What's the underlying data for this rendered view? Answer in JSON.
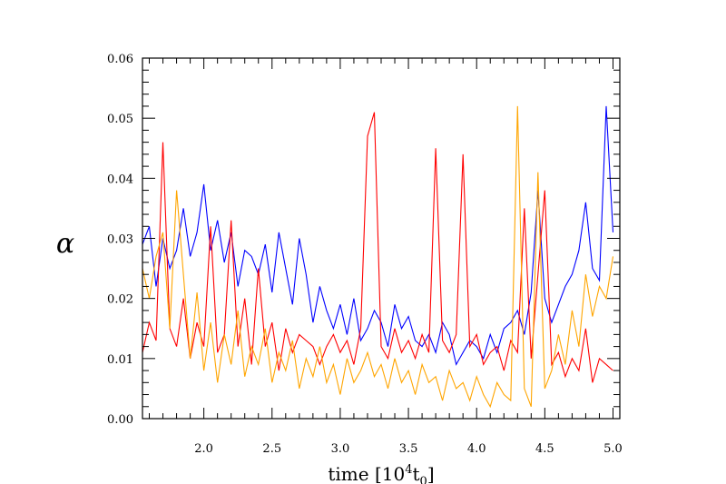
{
  "chart_data": {
    "type": "line",
    "title": "",
    "xlabel": "time [10",
    "xlabel_sup": "4",
    "xlabel_tail": "t",
    "xlabel_sub": "0",
    "xlabel_close": "]",
    "ylabel": "α",
    "xlim": [
      1.55,
      5.05
    ],
    "ylim": [
      0.0,
      0.06
    ],
    "xticks": [
      "2.0",
      "2.5",
      "3.0",
      "3.5",
      "4.0",
      "4.5",
      "5.0"
    ],
    "yticks": [
      "0.00",
      "0.01",
      "0.02",
      "0.03",
      "0.04",
      "0.05",
      "0.06"
    ],
    "grid": false,
    "series": [
      {
        "color": "#0000ff",
        "x": [
          1.55,
          1.6,
          1.65,
          1.7,
          1.75,
          1.8,
          1.85,
          1.9,
          1.95,
          2.0,
          2.05,
          2.1,
          2.15,
          2.2,
          2.25,
          2.3,
          2.35,
          2.4,
          2.45,
          2.5,
          2.55,
          2.6,
          2.65,
          2.7,
          2.75,
          2.8,
          2.85,
          2.9,
          2.95,
          3.0,
          3.05,
          3.1,
          3.15,
          3.2,
          3.25,
          3.3,
          3.35,
          3.4,
          3.45,
          3.5,
          3.55,
          3.6,
          3.65,
          3.7,
          3.75,
          3.8,
          3.85,
          3.9,
          3.95,
          4.0,
          4.05,
          4.1,
          4.15,
          4.2,
          4.25,
          4.3,
          4.35,
          4.4,
          4.45,
          4.5,
          4.55,
          4.6,
          4.65,
          4.7,
          4.75,
          4.8,
          4.85,
          4.9,
          4.95,
          5.0
        ],
        "values": [
          0.029,
          0.032,
          0.022,
          0.03,
          0.025,
          0.028,
          0.035,
          0.027,
          0.031,
          0.039,
          0.028,
          0.033,
          0.026,
          0.031,
          0.022,
          0.028,
          0.027,
          0.024,
          0.029,
          0.021,
          0.031,
          0.025,
          0.019,
          0.03,
          0.024,
          0.016,
          0.022,
          0.018,
          0.015,
          0.019,
          0.014,
          0.02,
          0.013,
          0.015,
          0.018,
          0.016,
          0.012,
          0.019,
          0.015,
          0.017,
          0.013,
          0.012,
          0.014,
          0.011,
          0.016,
          0.014,
          0.009,
          0.011,
          0.013,
          0.012,
          0.01,
          0.014,
          0.011,
          0.015,
          0.016,
          0.018,
          0.014,
          0.021,
          0.038,
          0.02,
          0.016,
          0.019,
          0.022,
          0.024,
          0.028,
          0.036,
          0.025,
          0.023,
          0.052,
          0.031
        ]
      },
      {
        "color": "#ff0000",
        "x": [
          1.55,
          1.6,
          1.65,
          1.7,
          1.75,
          1.8,
          1.85,
          1.9,
          1.95,
          2.0,
          2.05,
          2.1,
          2.15,
          2.2,
          2.25,
          2.3,
          2.35,
          2.4,
          2.45,
          2.5,
          2.55,
          2.6,
          2.65,
          2.7,
          2.75,
          2.8,
          2.85,
          2.9,
          2.95,
          3.0,
          3.05,
          3.1,
          3.15,
          3.2,
          3.25,
          3.3,
          3.35,
          3.4,
          3.45,
          3.5,
          3.55,
          3.6,
          3.65,
          3.7,
          3.75,
          3.8,
          3.85,
          3.9,
          3.95,
          4.0,
          4.05,
          4.1,
          4.15,
          4.2,
          4.25,
          4.3,
          4.35,
          4.4,
          4.45,
          4.5,
          4.55,
          4.6,
          4.65,
          4.7,
          4.75,
          4.8,
          4.85,
          4.9,
          4.95,
          5.0
        ],
        "values": [
          0.011,
          0.016,
          0.013,
          0.046,
          0.015,
          0.012,
          0.02,
          0.01,
          0.016,
          0.012,
          0.032,
          0.011,
          0.014,
          0.033,
          0.012,
          0.02,
          0.009,
          0.025,
          0.012,
          0.016,
          0.008,
          0.015,
          0.011,
          0.014,
          0.013,
          0.012,
          0.009,
          0.012,
          0.014,
          0.011,
          0.013,
          0.009,
          0.015,
          0.047,
          0.051,
          0.012,
          0.01,
          0.015,
          0.011,
          0.013,
          0.01,
          0.014,
          0.011,
          0.045,
          0.013,
          0.011,
          0.014,
          0.044,
          0.012,
          0.014,
          0.009,
          0.011,
          0.012,
          0.008,
          0.013,
          0.011,
          0.035,
          0.01,
          0.024,
          0.038,
          0.009,
          0.011,
          0.007,
          0.01,
          0.008,
          0.015,
          0.006,
          0.01,
          0.009,
          0.008
        ]
      },
      {
        "color": "#ffa500",
        "x": [
          1.55,
          1.6,
          1.65,
          1.7,
          1.75,
          1.8,
          1.85,
          1.9,
          1.95,
          2.0,
          2.05,
          2.1,
          2.15,
          2.2,
          2.25,
          2.3,
          2.35,
          2.4,
          2.45,
          2.5,
          2.55,
          2.6,
          2.65,
          2.7,
          2.75,
          2.8,
          2.85,
          2.9,
          2.95,
          3.0,
          3.05,
          3.1,
          3.15,
          3.2,
          3.25,
          3.3,
          3.35,
          3.4,
          3.45,
          3.5,
          3.55,
          3.6,
          3.65,
          3.7,
          3.75,
          3.8,
          3.85,
          3.9,
          3.95,
          4.0,
          4.05,
          4.1,
          4.15,
          4.2,
          4.25,
          4.3,
          4.35,
          4.4,
          4.45,
          4.5,
          4.55,
          4.6,
          4.65,
          4.7,
          4.75,
          4.8,
          4.85,
          4.9,
          4.95,
          5.0
        ],
        "values": [
          0.025,
          0.02,
          0.027,
          0.031,
          0.015,
          0.038,
          0.024,
          0.01,
          0.021,
          0.008,
          0.016,
          0.006,
          0.014,
          0.009,
          0.018,
          0.007,
          0.012,
          0.009,
          0.015,
          0.006,
          0.011,
          0.008,
          0.013,
          0.005,
          0.01,
          0.007,
          0.012,
          0.006,
          0.009,
          0.004,
          0.01,
          0.006,
          0.008,
          0.011,
          0.007,
          0.009,
          0.005,
          0.01,
          0.006,
          0.008,
          0.004,
          0.009,
          0.006,
          0.007,
          0.003,
          0.008,
          0.005,
          0.006,
          0.003,
          0.007,
          0.004,
          0.002,
          0.006,
          0.004,
          0.003,
          0.052,
          0.005,
          0.002,
          0.041,
          0.005,
          0.008,
          0.014,
          0.009,
          0.018,
          0.012,
          0.024,
          0.017,
          0.022,
          0.02,
          0.027
        ]
      }
    ]
  }
}
